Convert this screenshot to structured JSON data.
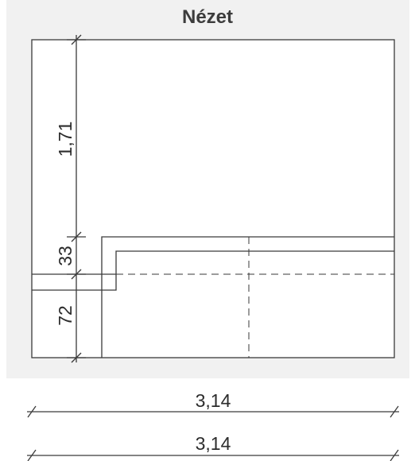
{
  "title": "Nézet",
  "dimensions": {
    "vertical": [
      "1,71",
      "33",
      "72"
    ],
    "bottom_upper": "3,14",
    "bottom_lower": "3,14"
  },
  "colors": {
    "line": "#3a3a3a",
    "panel": "#f1f1f1"
  }
}
